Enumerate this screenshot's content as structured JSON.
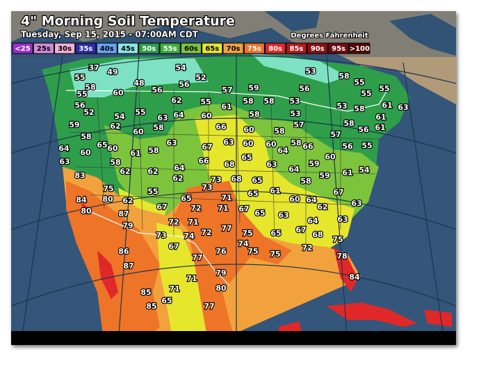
{
  "header": {
    "title": "4\" Morning Soil Temperature",
    "subtitle": "Tuesday, Sep 15, 2015 - 07:00AM CDT",
    "units": "Degrees Fahrenheit"
  },
  "legend": [
    {
      "label": "<25",
      "color": "#9a2fc8"
    },
    {
      "label": "25s",
      "color": "#d08cd6"
    },
    {
      "label": "30s",
      "color": "#f3aed6"
    },
    {
      "label": "35s",
      "color": "#2f2ca8"
    },
    {
      "label": "40s",
      "color": "#6b9ff2"
    },
    {
      "label": "45s",
      "color": "#8ce6e4"
    },
    {
      "label": "50s",
      "color": "#2e9e4a"
    },
    {
      "label": "55s",
      "color": "#3fae3e"
    },
    {
      "label": "60s",
      "color": "#7cc43c"
    },
    {
      "label": "65s",
      "color": "#e6e62c"
    },
    {
      "label": "70s",
      "color": "#f2a23c"
    },
    {
      "label": "75s",
      "color": "#ee7428"
    },
    {
      "label": "80s",
      "color": "#e02828"
    },
    {
      "label": "85s",
      "color": "#b81818"
    },
    {
      "label": "90s",
      "color": "#8c1010"
    },
    {
      "label": "95s",
      "color": "#6e0c0c"
    },
    {
      "label": ">100",
      "color": "#500808"
    }
  ],
  "stations": [
    37,
    49,
    54,
    52,
    56,
    55,
    58,
    55,
    60,
    48,
    56,
    57,
    59,
    56,
    53,
    58,
    55,
    55,
    55,
    56,
    52,
    54,
    55,
    62,
    55,
    61,
    58,
    58,
    53,
    53,
    58,
    61,
    63,
    58,
    53,
    59,
    62,
    60,
    58,
    63,
    64,
    60,
    66,
    60,
    58,
    57,
    57,
    58,
    56,
    61,
    61,
    58,
    65,
    60,
    64,
    60,
    61,
    58,
    63,
    67,
    63,
    60,
    60,
    64,
    58,
    66,
    56,
    55,
    63,
    58,
    66,
    68,
    65,
    63,
    64,
    59,
    60,
    61,
    54,
    83,
    62,
    62,
    64,
    62,
    73,
    73,
    68,
    65,
    61,
    58,
    59,
    67,
    75,
    55,
    65,
    84,
    80,
    62,
    65,
    71,
    67,
    72,
    71,
    67,
    65,
    60,
    64,
    62,
    63,
    80,
    87,
    79,
    72,
    71,
    77,
    72,
    73,
    74,
    63,
    64,
    63,
    75,
    65,
    67,
    68,
    75,
    67,
    76,
    74,
    75,
    75,
    72,
    86,
    87,
    77,
    79,
    78,
    84,
    71,
    80,
    71,
    85,
    65,
    85,
    77
  ]
}
